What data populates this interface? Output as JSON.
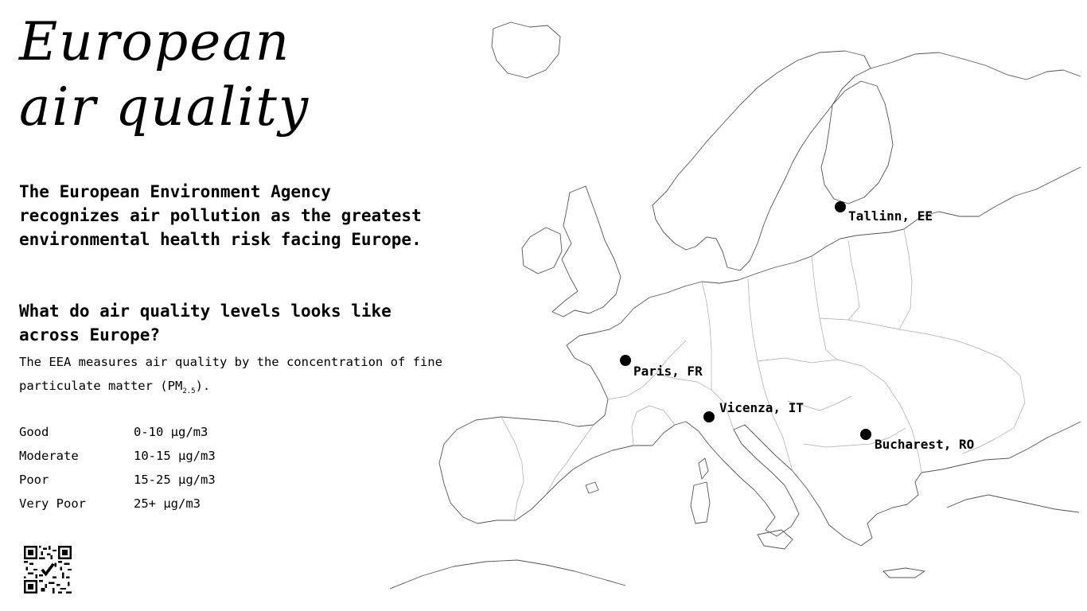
{
  "title": {
    "line1": "European",
    "line2": "air quality"
  },
  "intro": "The European Environment Agency recognizes air pollution as the greatest environmental health risk facing Europe.",
  "question": "What do air quality levels looks like across Europe?",
  "measure": {
    "text": "The EEA measures air quality by the concentration of fine particulate matter (PM",
    "sub": "2.5",
    "tail": ")."
  },
  "levels": [
    {
      "name": "Good",
      "range": "0-10 µg/m3"
    },
    {
      "name": "Moderate",
      "range": "10-15 µg/m3"
    },
    {
      "name": "Poor",
      "range": "15-25 µg/m3"
    },
    {
      "name": "Very Poor",
      "range": "25+ µg/m3"
    }
  ],
  "cities": [
    {
      "label": "Tallinn, EE"
    },
    {
      "label": "Paris, FR"
    },
    {
      "label": "Vicenza, IT"
    },
    {
      "label": "Bucharest, RO"
    }
  ],
  "qr_icon": "qr-code-icon",
  "colors": {
    "background": "#ffffff",
    "text": "#000000",
    "map_outline": "#555555"
  }
}
